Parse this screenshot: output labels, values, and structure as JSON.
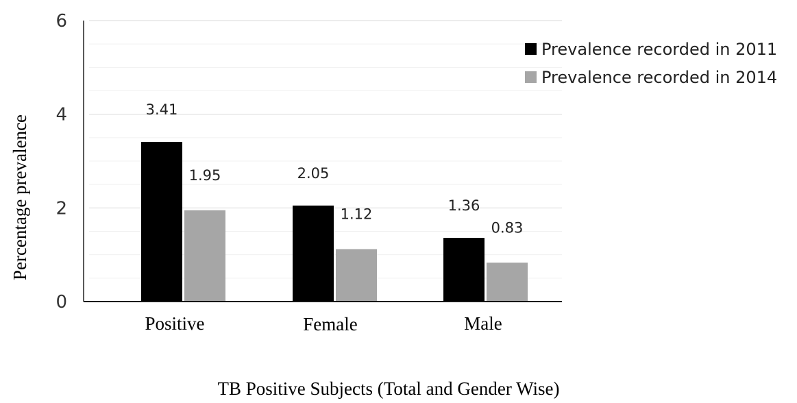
{
  "chart_data": {
    "type": "bar",
    "categories": [
      "Positive",
      "Female",
      "Male"
    ],
    "series": [
      {
        "name": "Prevalence recorded in 2011",
        "values": [
          3.41,
          2.05,
          1.36
        ],
        "labels": [
          "3.41",
          "2.05",
          "1.36"
        ],
        "color": "#000000"
      },
      {
        "name": "Prevalence recorded in 2014",
        "values": [
          1.95,
          1.12,
          0.83
        ],
        "labels": [
          "1.95",
          "1.12",
          "0.83"
        ],
        "color": "#a6a6a6"
      }
    ],
    "xlabel": "TB Positive Subjects (Total and Gender Wise)",
    "ylabel": "Percentage prevalence",
    "ylim": [
      0,
      6
    ],
    "yticks": [
      "0",
      "2",
      "4",
      "6"
    ],
    "grid": true,
    "legend": "top-right"
  }
}
